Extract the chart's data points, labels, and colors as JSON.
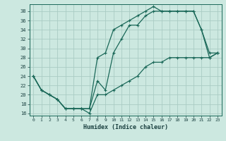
{
  "xlabel": "Humidex (Indice chaleur)",
  "bg_color": "#cce8e0",
  "grid_color": "#aaccc4",
  "line_color": "#1a6858",
  "xlim": [
    -0.5,
    23.5
  ],
  "ylim": [
    15.5,
    39.5
  ],
  "xticks": [
    0,
    1,
    2,
    3,
    4,
    5,
    6,
    7,
    8,
    9,
    10,
    11,
    12,
    13,
    14,
    15,
    16,
    17,
    18,
    19,
    20,
    21,
    22,
    23
  ],
  "yticks": [
    16,
    18,
    20,
    22,
    24,
    26,
    28,
    30,
    32,
    34,
    36,
    38
  ],
  "line1_x": [
    0,
    1,
    2,
    3,
    4,
    5,
    6,
    7,
    8,
    9,
    10,
    11,
    12,
    13,
    14,
    15,
    16,
    17,
    18,
    19,
    20,
    21,
    22,
    23
  ],
  "line1_y": [
    24,
    21,
    20,
    19,
    17,
    17,
    17,
    17,
    28,
    29,
    34,
    35,
    36,
    37,
    38,
    39,
    38,
    38,
    38,
    38,
    38,
    34,
    28,
    29
  ],
  "line2_x": [
    0,
    1,
    2,
    3,
    4,
    5,
    6,
    7,
    8,
    9,
    10,
    11,
    12,
    13,
    14,
    15,
    16,
    17,
    18,
    19,
    20,
    21,
    22,
    23
  ],
  "line2_y": [
    24,
    21,
    20,
    19,
    17,
    17,
    17,
    17,
    23,
    21,
    29,
    32,
    35,
    35,
    37,
    38,
    38,
    38,
    38,
    38,
    38,
    34,
    29,
    29
  ],
  "line3_x": [
    0,
    1,
    2,
    3,
    4,
    5,
    6,
    7,
    8,
    9,
    10,
    11,
    12,
    13,
    14,
    15,
    16,
    17,
    18,
    19,
    20,
    21,
    22,
    23
  ],
  "line3_y": [
    24,
    21,
    20,
    19,
    17,
    17,
    17,
    16,
    20,
    20,
    21,
    22,
    23,
    24,
    26,
    27,
    27,
    28,
    28,
    28,
    28,
    28,
    28,
    29
  ]
}
